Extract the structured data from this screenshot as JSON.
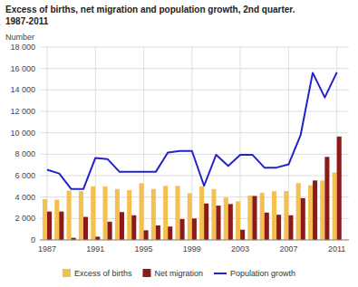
{
  "chart_data": {
    "type": "bar",
    "title": "Excess of births, net migration and population growth, 2nd quarter.",
    "subtitle": "1987-2011",
    "ylabel": "Number",
    "x": [
      1987,
      1988,
      1989,
      1990,
      1991,
      1992,
      1993,
      1994,
      1995,
      1996,
      1997,
      1998,
      1999,
      2000,
      2001,
      2002,
      2003,
      2004,
      2005,
      2006,
      2007,
      2008,
      2009,
      2010,
      2011
    ],
    "xlim": [
      1986.4,
      2012.0
    ],
    "xticks": [
      1987,
      1991,
      1995,
      1999,
      2003,
      2007,
      2011
    ],
    "ylim": [
      0,
      18000
    ],
    "yticks": [
      0,
      {
        "value": 2000,
        "label": "2 000"
      },
      {
        "value": 4000,
        "label": "4 000"
      },
      {
        "value": 6000,
        "label": "6 000"
      },
      {
        "value": 8000,
        "label": "8 000"
      },
      {
        "value": 10000,
        "label": "10 000"
      },
      {
        "value": 12000,
        "label": "12 000"
      },
      {
        "value": 14000,
        "label": "14 000"
      },
      {
        "value": 16000,
        "label": "16 000"
      },
      {
        "value": 18000,
        "label": "18 000"
      }
    ],
    "grid": true,
    "legend": "bottom",
    "series": [
      {
        "name": "Excess of births",
        "type": "bar",
        "color": "#f5c050",
        "values": [
          3800,
          3750,
          4600,
          4550,
          5000,
          5000,
          4750,
          4650,
          5300,
          4750,
          5050,
          5050,
          4350,
          5000,
          4750,
          3950,
          3600,
          4150,
          4400,
          4550,
          4550,
          5300,
          5100,
          5550,
          6300
        ]
      },
      {
        "name": "Net migration",
        "type": "bar",
        "color": "#8b1a1a",
        "values": [
          2650,
          2650,
          200,
          2150,
          300,
          1700,
          2600,
          2300,
          900,
          1350,
          1250,
          1950,
          2000,
          3400,
          3200,
          3350,
          950,
          4100,
          2550,
          2350,
          2300,
          3900,
          5550,
          7750,
          9650
        ]
      },
      {
        "name": "Population growth",
        "type": "line",
        "color": "#2222cc",
        "values": [
          6550,
          6200,
          4750,
          4750,
          7650,
          7550,
          6350,
          6350,
          6350,
          6350,
          8150,
          8300,
          8300,
          5050,
          7950,
          6900,
          7950,
          7950,
          6750,
          6750,
          7050,
          9800,
          15600,
          13300,
          15650
        ]
      }
    ]
  }
}
